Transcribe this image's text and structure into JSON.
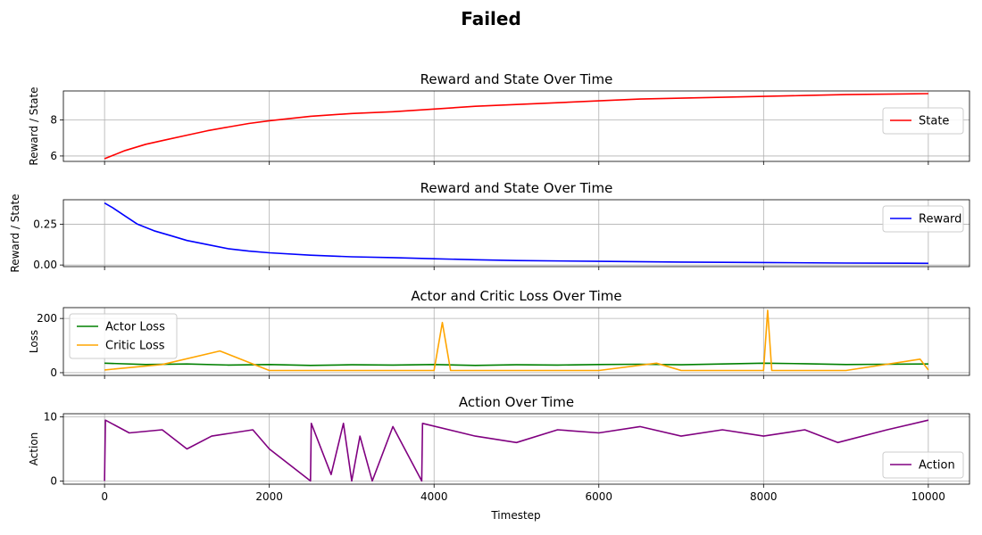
{
  "figure": {
    "suptitle": "Failed",
    "xlabel": "Timestep",
    "x_ticks": [
      0,
      2000,
      4000,
      6000,
      8000,
      10000
    ],
    "xlim": [
      -500,
      10500
    ]
  },
  "chart_data": [
    {
      "type": "line",
      "title": "Reward and State Over Time",
      "ylabel": "Reward / State",
      "ylim": [
        5.7,
        9.6
      ],
      "y_ticks": [
        6,
        8
      ],
      "grid": true,
      "legend": "right",
      "series": [
        {
          "name": "State",
          "color": "#ff0000",
          "x": [
            0,
            250,
            500,
            750,
            1000,
            1250,
            1500,
            1750,
            2000,
            2500,
            3000,
            3500,
            4000,
            4500,
            5000,
            5500,
            6000,
            6500,
            7000,
            7500,
            8000,
            8500,
            9000,
            9500,
            10000
          ],
          "y": [
            5.85,
            6.3,
            6.65,
            6.9,
            7.15,
            7.4,
            7.6,
            7.8,
            7.95,
            8.2,
            8.35,
            8.45,
            8.6,
            8.75,
            8.85,
            8.95,
            9.05,
            9.15,
            9.2,
            9.25,
            9.3,
            9.35,
            9.4,
            9.42,
            9.45
          ]
        }
      ]
    },
    {
      "type": "line",
      "title": "Reward and State Over Time",
      "ylabel": "Reward / State",
      "ylim": [
        -0.01,
        0.4
      ],
      "y_ticks": [
        0.0,
        0.25
      ],
      "y_tick_labels": [
        "0.00",
        "0.25"
      ],
      "grid": true,
      "legend": "top-right",
      "series": [
        {
          "name": "Reward",
          "color": "#0000ff",
          "x": [
            0,
            100,
            250,
            400,
            600,
            800,
            1000,
            1250,
            1500,
            1750,
            2000,
            2500,
            3000,
            3500,
            4000,
            4500,
            5000,
            6000,
            7000,
            8000,
            9000,
            10000
          ],
          "y": [
            0.38,
            0.35,
            0.3,
            0.25,
            0.21,
            0.18,
            0.15,
            0.125,
            0.1,
            0.085,
            0.075,
            0.06,
            0.05,
            0.045,
            0.038,
            0.032,
            0.027,
            0.022,
            0.018,
            0.015,
            0.012,
            0.01
          ]
        }
      ]
    },
    {
      "type": "line",
      "title": "Actor and Critic Loss Over Time",
      "ylabel": "Loss",
      "ylim": [
        -10,
        240
      ],
      "y_ticks": [
        0,
        200
      ],
      "grid": true,
      "legend": "top-left",
      "series": [
        {
          "name": "Actor Loss",
          "color": "#008000",
          "x": [
            0,
            500,
            1000,
            1500,
            2000,
            2500,
            3000,
            3500,
            4000,
            4500,
            5000,
            5500,
            6000,
            6500,
            7000,
            7500,
            8000,
            8500,
            9000,
            9500,
            10000
          ],
          "y": [
            35,
            30,
            32,
            28,
            30,
            27,
            29,
            28,
            30,
            27,
            29,
            28,
            30,
            31,
            29,
            32,
            35,
            33,
            30,
            31,
            32
          ]
        },
        {
          "name": "Critic Loss",
          "color": "#ffa500",
          "x": [
            0,
            700,
            1400,
            2000,
            3000,
            4000,
            4100,
            4200,
            5000,
            6000,
            6700,
            7000,
            8000,
            8050,
            8100,
            9000,
            9900,
            10000
          ],
          "y": [
            10,
            30,
            80,
            8,
            8,
            8,
            185,
            8,
            8,
            8,
            35,
            8,
            8,
            230,
            8,
            8,
            50,
            10
          ]
        }
      ]
    },
    {
      "type": "line",
      "title": "Action Over Time",
      "ylabel": "Action",
      "ylim": [
        -0.5,
        10.5
      ],
      "y_ticks": [
        0,
        10
      ],
      "grid": true,
      "legend": "bottom-right",
      "series": [
        {
          "name": "Action",
          "color": "#800080",
          "x": [
            0,
            10,
            300,
            700,
            1000,
            1300,
            1800,
            2000,
            2500,
            2510,
            2750,
            2900,
            3000,
            3100,
            3250,
            3500,
            3850,
            3860,
            4500,
            5000,
            5500,
            6000,
            6500,
            7000,
            7500,
            8000,
            8500,
            8900,
            9500,
            10000
          ],
          "y": [
            0,
            9.5,
            7.5,
            8.0,
            5.0,
            7.0,
            8.0,
            5.0,
            0,
            9.0,
            1.0,
            9.0,
            0,
            7.0,
            0,
            8.5,
            0,
            9.0,
            7.0,
            6.0,
            8.0,
            7.5,
            8.5,
            7.0,
            8.0,
            7.0,
            8.0,
            6.0,
            8.0,
            9.5
          ]
        }
      ]
    }
  ]
}
